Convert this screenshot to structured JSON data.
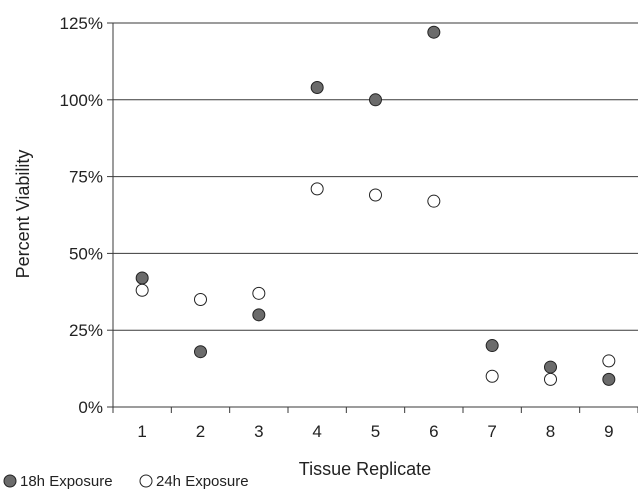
{
  "chart_data": {
    "type": "scatter",
    "xlabel": "Tissue Replicate",
    "ylabel": "Percent Viability",
    "x_ticks": [
      "1",
      "2",
      "3",
      "4",
      "5",
      "6",
      "7",
      "8",
      "9"
    ],
    "y_ticks": [
      "0%",
      "25%",
      "50%",
      "75%",
      "100%",
      "125%"
    ],
    "ylim": [
      0,
      125
    ],
    "y_tick_values": [
      0,
      25,
      50,
      75,
      100,
      125
    ],
    "grid": "horizontal",
    "legend_position": "bottom-left",
    "series": [
      {
        "name": "18h Exposure",
        "marker": "filled-circle",
        "color": "#6b6b6b",
        "x": [
          1,
          2,
          3,
          4,
          5,
          6,
          7,
          8,
          9
        ],
        "y": [
          42,
          18,
          30,
          104,
          100,
          122,
          20,
          13,
          9
        ]
      },
      {
        "name": "24h Exposure",
        "marker": "open-circle",
        "color": "#ffffff",
        "x": [
          1,
          2,
          3,
          4,
          5,
          6,
          7,
          8,
          9
        ],
        "y": [
          38,
          35,
          37,
          71,
          69,
          67,
          10,
          9,
          15
        ]
      }
    ]
  }
}
